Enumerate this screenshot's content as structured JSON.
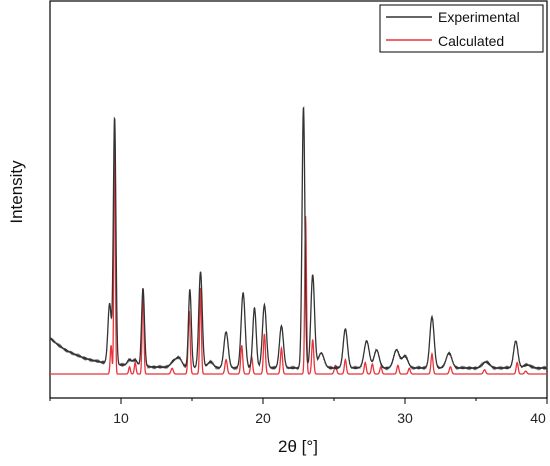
{
  "chart_data": {
    "type": "line",
    "xlabel": "2θ [°]",
    "ylabel": "Intensity",
    "xlim": [
      5,
      40
    ],
    "ylim": [
      0,
      1
    ],
    "x_ticks": [
      10,
      20,
      30,
      40
    ],
    "grid": false,
    "y_tick_labels": false,
    "legend": {
      "position": "top-right"
    },
    "series": [
      {
        "name": "Experimental",
        "color": "#333333",
        "baseline": 0.1,
        "noise": 0.002,
        "peaks": [
          [
            9.2,
            0.2,
            0.12
          ],
          [
            9.55,
            0.82,
            0.09
          ],
          [
            10.6,
            0.02,
            0.15
          ],
          [
            11.0,
            0.02,
            0.15
          ],
          [
            11.55,
            0.26,
            0.1
          ],
          [
            13.7,
            0.02,
            0.2
          ],
          [
            14.1,
            0.03,
            0.2
          ],
          [
            14.85,
            0.26,
            0.1
          ],
          [
            15.6,
            0.32,
            0.12
          ],
          [
            16.3,
            0.02,
            0.2
          ],
          [
            17.4,
            0.12,
            0.15
          ],
          [
            18.6,
            0.25,
            0.14
          ],
          [
            19.4,
            0.2,
            0.12
          ],
          [
            20.1,
            0.21,
            0.14
          ],
          [
            21.3,
            0.14,
            0.14
          ],
          [
            22.85,
            0.87,
            0.1
          ],
          [
            23.5,
            0.31,
            0.13
          ],
          [
            24.1,
            0.05,
            0.2
          ],
          [
            25.8,
            0.13,
            0.15
          ],
          [
            27.3,
            0.09,
            0.18
          ],
          [
            28.0,
            0.06,
            0.18
          ],
          [
            29.4,
            0.06,
            0.2
          ],
          [
            30.0,
            0.04,
            0.2
          ],
          [
            31.9,
            0.17,
            0.15
          ],
          [
            33.1,
            0.05,
            0.2
          ],
          [
            35.7,
            0.02,
            0.25
          ],
          [
            37.8,
            0.09,
            0.15
          ],
          [
            38.6,
            0.01,
            0.25
          ]
        ]
      },
      {
        "name": "Calculated",
        "color": "#e8333a",
        "baseline": 0.0,
        "noise": 0.0,
        "peaks": [
          [
            9.3,
            0.1,
            0.06
          ],
          [
            9.55,
            0.9,
            0.05
          ],
          [
            10.6,
            0.025,
            0.06
          ],
          [
            11.0,
            0.04,
            0.06
          ],
          [
            11.55,
            0.3,
            0.06
          ],
          [
            13.6,
            0.02,
            0.08
          ],
          [
            14.8,
            0.22,
            0.07
          ],
          [
            15.6,
            0.3,
            0.06
          ],
          [
            17.4,
            0.05,
            0.08
          ],
          [
            18.5,
            0.1,
            0.07
          ],
          [
            19.2,
            0.06,
            0.07
          ],
          [
            20.1,
            0.14,
            0.07
          ],
          [
            21.3,
            0.09,
            0.07
          ],
          [
            23.0,
            0.55,
            0.06
          ],
          [
            23.5,
            0.12,
            0.07
          ],
          [
            25.1,
            0.03,
            0.08
          ],
          [
            25.8,
            0.05,
            0.07
          ],
          [
            27.2,
            0.04,
            0.07
          ],
          [
            27.7,
            0.035,
            0.07
          ],
          [
            28.3,
            0.025,
            0.07
          ],
          [
            29.5,
            0.03,
            0.07
          ],
          [
            30.3,
            0.02,
            0.07
          ],
          [
            31.9,
            0.07,
            0.07
          ],
          [
            33.2,
            0.025,
            0.08
          ],
          [
            35.6,
            0.015,
            0.08
          ],
          [
            37.9,
            0.04,
            0.07
          ],
          [
            38.5,
            0.01,
            0.08
          ]
        ]
      }
    ]
  }
}
